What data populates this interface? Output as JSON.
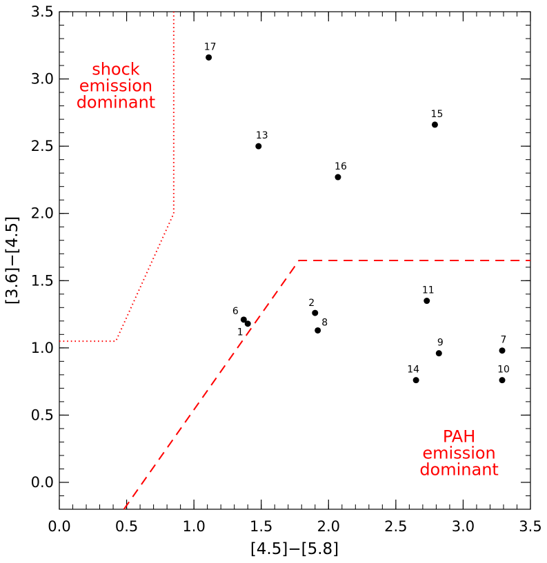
{
  "chart_data": {
    "type": "scatter",
    "title": "",
    "xlabel": "[4.5]−[5.8]",
    "ylabel": "[3.6]−[4.5]",
    "xlim": [
      0.0,
      3.5
    ],
    "ylim": [
      -0.2,
      3.5
    ],
    "x_ticks": [
      "0.0",
      "0.5",
      "1.0",
      "1.5",
      "2.0",
      "2.5",
      "3.0",
      "3.5"
    ],
    "y_ticks": [
      "0.0",
      "0.5",
      "1.0",
      "1.5",
      "2.0",
      "2.5",
      "3.0",
      "3.5"
    ],
    "grid": false,
    "points": [
      {
        "label": "1",
        "x": 1.4,
        "y": 1.18
      },
      {
        "label": "2",
        "x": 1.9,
        "y": 1.26
      },
      {
        "label": "6",
        "x": 1.37,
        "y": 1.21
      },
      {
        "label": "7",
        "x": 3.29,
        "y": 0.98
      },
      {
        "label": "8",
        "x": 1.92,
        "y": 1.13
      },
      {
        "label": "9",
        "x": 2.82,
        "y": 0.96
      },
      {
        "label": "10",
        "x": 3.29,
        "y": 0.76
      },
      {
        "label": "11",
        "x": 2.73,
        "y": 1.35
      },
      {
        "label": "13",
        "x": 1.48,
        "y": 2.5
      },
      {
        "label": "14",
        "x": 2.65,
        "y": 0.76
      },
      {
        "label": "15",
        "x": 2.79,
        "y": 2.66
      },
      {
        "label": "16",
        "x": 2.07,
        "y": 2.27
      },
      {
        "label": "17",
        "x": 1.11,
        "y": 3.16
      }
    ],
    "boundaries": [
      {
        "name": "shock-boundary",
        "style": "dotted",
        "color": "#ff0000",
        "x": [
          0.0,
          0.42,
          0.85,
          0.85
        ],
        "y": [
          1.05,
          1.05,
          2.0,
          3.5
        ]
      },
      {
        "name": "pah-boundary",
        "style": "dashed",
        "color": "#ff0000",
        "x": [
          0.48,
          1.78,
          3.5
        ],
        "y": [
          -0.2,
          1.65,
          1.65
        ]
      }
    ],
    "annotations": [
      {
        "name": "shock-label",
        "color": "#ff0000",
        "lines": [
          "shock",
          "emission",
          "dominant"
        ],
        "x": 0.42,
        "y": 3.03
      },
      {
        "name": "pah-label",
        "color": "#ff0000",
        "lines": [
          "PAH",
          "emission",
          "dominant"
        ],
        "x": 2.97,
        "y": 0.3
      }
    ]
  }
}
